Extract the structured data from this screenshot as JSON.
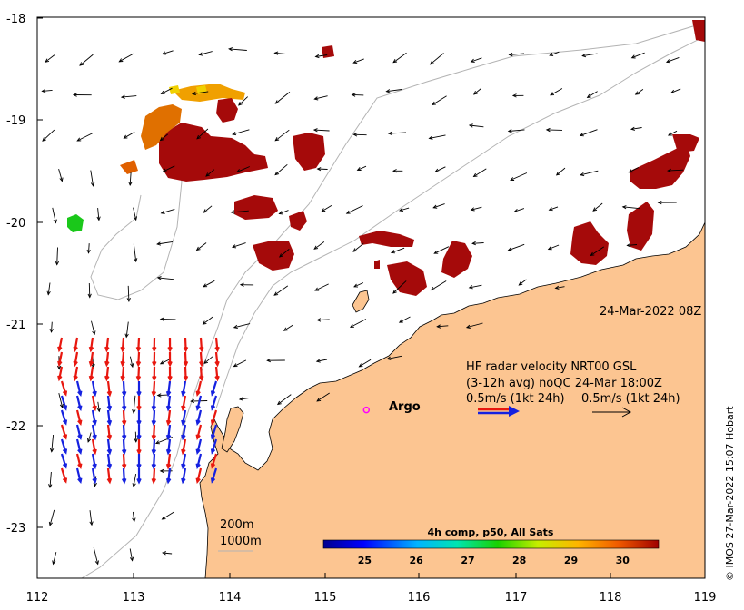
{
  "map": {
    "axes": {
      "x_ticks": [
        "112",
        "113",
        "114",
        "115",
        "116",
        "117",
        "118",
        "119"
      ],
      "y_ticks": [
        "-18",
        "-19",
        "-20",
        "-21",
        "-22",
        "-23"
      ],
      "lon_range": [
        112,
        119
      ],
      "lat_range": [
        -23.5,
        -18
      ]
    },
    "timestamp": "24-Mar-2022 08Z",
    "radar": {
      "line1": "HF radar velocity  NRT00 GSL",
      "line2": "(3-12h avg) noQC 24-Mar 18:00Z",
      "legend_radar": "0.5m/s (1kt 24h)",
      "legend_model": "0.5m/s (1kt 24h)"
    },
    "argo": {
      "label": "Argo",
      "lon": 115.45,
      "lat": -21.85
    },
    "isobaths": {
      "label1": "200m",
      "label2": "1000m"
    },
    "colorbar": {
      "title": "4h comp, p50, All Sats",
      "ticks": [
        "25",
        "26",
        "27",
        "28",
        "29",
        "30"
      ],
      "range": [
        24.2,
        30.7
      ]
    },
    "credit": "© IMOS 27-Mar-2022 15:07 Hobart",
    "colors": {
      "land": "#fcc591",
      "radar_red": "#e8170f",
      "radar_blue": "#1521e0",
      "argo": "#ff00ff",
      "sst_dark": "#a50a0a"
    }
  }
}
